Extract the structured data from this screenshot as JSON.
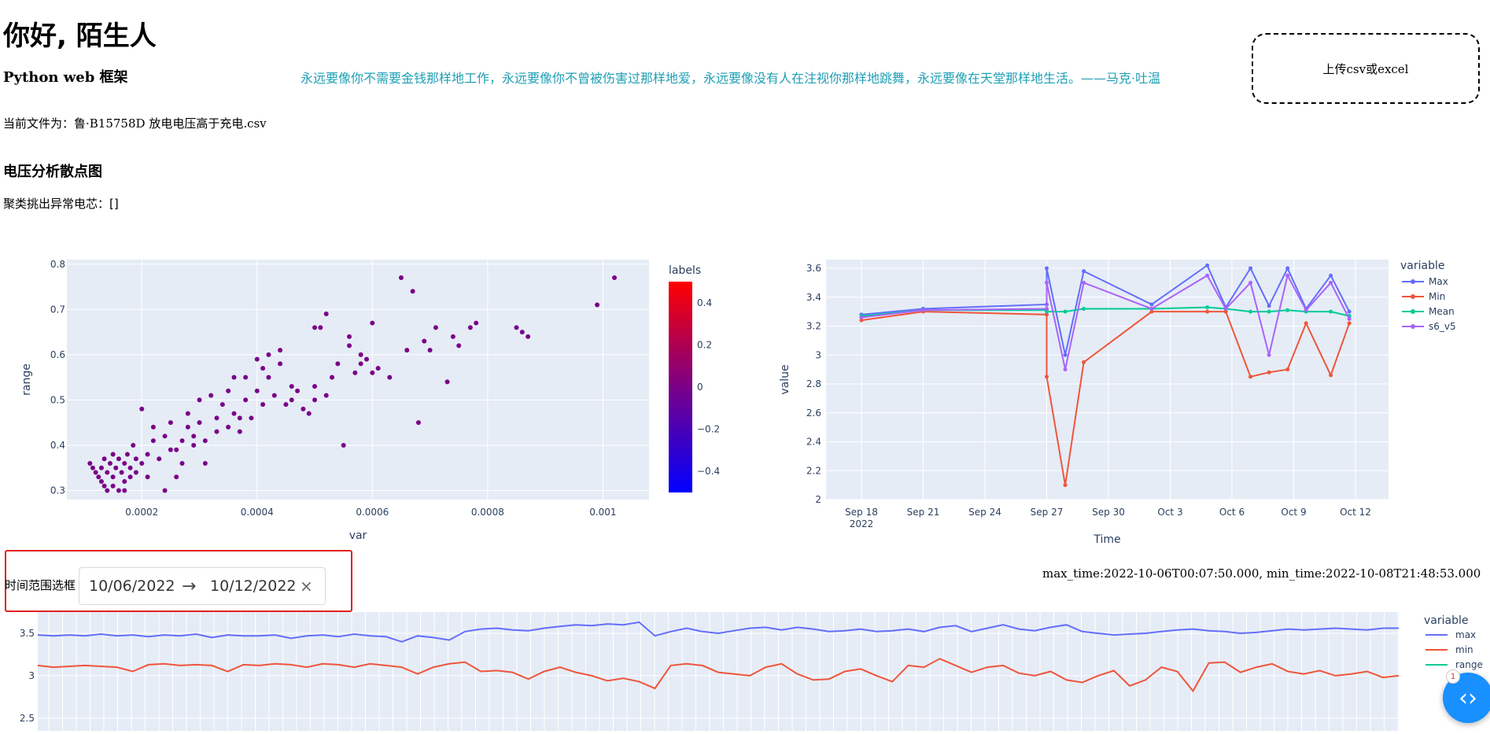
{
  "header": {
    "title": "你好, 陌生人",
    "subtitle": "Python web 框架",
    "quote": "永远要像你不需要金钱那样地工作，永远要像你不曾被伤害过那样地爱，永远要像没有人在注视你那样地跳舞，永远要像在天堂那样地生活。——马克·吐温"
  },
  "upload": {
    "label": "上传csv或excel"
  },
  "current_file": {
    "label": "当前文件为：",
    "name": "鲁·B15758D 放电电压高于充电.csv"
  },
  "section": {
    "title": "电压分析散点图"
  },
  "cluster": {
    "label": "聚类挑出异常电芯：",
    "value": "[]"
  },
  "range_selector": {
    "label": "时间范围选框",
    "start": "10/06/2022",
    "arrow": "→",
    "end": "10/12/2022",
    "clear": "×"
  },
  "maxmin_text": "max_time:2022-10-06T00:07:50.000, min_time:2022-10-08T21:48:53.000",
  "fab": {
    "icon": "code-icon",
    "badge": "1"
  },
  "chart_data": [
    {
      "type": "scatter",
      "xlabel": "var",
      "ylabel": "range",
      "xticks": [
        "0.0002",
        "0.0004",
        "0.0006",
        "0.0008",
        "0.001"
      ],
      "yticks": [
        "0.3",
        "0.4",
        "0.5",
        "0.6",
        "0.7",
        "0.8"
      ],
      "xlim": [
        7e-05,
        0.00108
      ],
      "ylim": [
        0.28,
        0.81
      ],
      "colorbar": {
        "title": "labels",
        "ticks": [
          "0.4",
          "0.2",
          "0",
          "−0.2",
          "−0.4"
        ],
        "range": [
          -0.5,
          0.5
        ]
      },
      "point_color": "#7a0087",
      "points": [
        [
          0.00011,
          0.36
        ],
        [
          0.00012,
          0.34
        ],
        [
          0.000125,
          0.33
        ],
        [
          0.00013,
          0.35
        ],
        [
          0.00013,
          0.32
        ],
        [
          0.000135,
          0.37
        ],
        [
          0.00014,
          0.3
        ],
        [
          0.00014,
          0.34
        ],
        [
          0.000145,
          0.36
        ],
        [
          0.00015,
          0.31
        ],
        [
          0.00015,
          0.33
        ],
        [
          0.000155,
          0.35
        ],
        [
          0.00016,
          0.3
        ],
        [
          0.00016,
          0.37
        ],
        [
          0.000165,
          0.34
        ],
        [
          0.00017,
          0.32
        ],
        [
          0.00017,
          0.36
        ],
        [
          0.000175,
          0.38
        ],
        [
          0.00018,
          0.33
        ],
        [
          0.00018,
          0.35
        ],
        [
          0.000185,
          0.4
        ],
        [
          0.00019,
          0.34
        ],
        [
          0.00019,
          0.37
        ],
        [
          0.0002,
          0.48
        ],
        [
          0.0002,
          0.36
        ],
        [
          0.00021,
          0.38
        ],
        [
          0.00021,
          0.33
        ],
        [
          0.00022,
          0.44
        ],
        [
          0.00023,
          0.37
        ],
        [
          0.00024,
          0.42
        ],
        [
          0.00024,
          0.3
        ],
        [
          0.00025,
          0.45
        ],
        [
          0.00025,
          0.39
        ],
        [
          0.00026,
          0.33
        ],
        [
          0.00027,
          0.41
        ],
        [
          0.00027,
          0.36
        ],
        [
          0.00028,
          0.44
        ],
        [
          0.00028,
          0.47
        ],
        [
          0.00029,
          0.4
        ],
        [
          0.00029,
          0.42
        ],
        [
          0.0003,
          0.5
        ],
        [
          0.0003,
          0.45
        ],
        [
          0.00031,
          0.41
        ],
        [
          0.00031,
          0.36
        ],
        [
          0.00032,
          0.51
        ],
        [
          0.00033,
          0.46
        ],
        [
          0.00034,
          0.49
        ],
        [
          0.00035,
          0.52
        ],
        [
          0.00035,
          0.44
        ],
        [
          0.00036,
          0.55
        ],
        [
          0.00036,
          0.47
        ],
        [
          0.00037,
          0.43
        ],
        [
          0.00038,
          0.5
        ],
        [
          0.00038,
          0.55
        ],
        [
          0.00039,
          0.46
        ],
        [
          0.0004,
          0.59
        ],
        [
          0.0004,
          0.52
        ],
        [
          0.00041,
          0.57
        ],
        [
          0.00041,
          0.49
        ],
        [
          0.00042,
          0.6
        ],
        [
          0.00042,
          0.55
        ],
        [
          0.00043,
          0.51
        ],
        [
          0.00044,
          0.61
        ],
        [
          0.00044,
          0.58
        ],
        [
          0.00045,
          0.49
        ],
        [
          0.00046,
          0.5
        ],
        [
          0.00047,
          0.52
        ],
        [
          0.00048,
          0.48
        ],
        [
          0.00049,
          0.47
        ],
        [
          0.0005,
          0.5
        ],
        [
          0.0005,
          0.53
        ],
        [
          0.00051,
          0.66
        ],
        [
          0.00052,
          0.69
        ],
        [
          0.00052,
          0.51
        ],
        [
          0.00053,
          0.55
        ],
        [
          0.00054,
          0.58
        ],
        [
          0.00055,
          0.4
        ],
        [
          0.00056,
          0.64
        ],
        [
          0.00056,
          0.62
        ],
        [
          0.00057,
          0.56
        ],
        [
          0.00058,
          0.58
        ],
        [
          0.00059,
          0.59
        ],
        [
          0.0006,
          0.56
        ],
        [
          0.0006,
          0.67
        ],
        [
          0.00061,
          0.57
        ],
        [
          0.00063,
          0.55
        ],
        [
          0.00065,
          0.77
        ],
        [
          0.00066,
          0.61
        ],
        [
          0.00067,
          0.74
        ],
        [
          0.00068,
          0.45
        ],
        [
          0.00069,
          0.63
        ],
        [
          0.0007,
          0.61
        ],
        [
          0.00071,
          0.66
        ],
        [
          0.00073,
          0.54
        ],
        [
          0.00074,
          0.64
        ],
        [
          0.00075,
          0.62
        ],
        [
          0.00077,
          0.66
        ],
        [
          0.00078,
          0.67
        ],
        [
          0.00085,
          0.66
        ],
        [
          0.00086,
          0.65
        ],
        [
          0.00087,
          0.64
        ],
        [
          0.00099,
          0.71
        ],
        [
          0.00102,
          0.77
        ],
        [
          0.000115,
          0.35
        ],
        [
          0.000135,
          0.31
        ],
        [
          0.00015,
          0.38
        ],
        [
          0.00017,
          0.3
        ],
        [
          0.00022,
          0.41
        ],
        [
          0.00026,
          0.39
        ],
        [
          0.00033,
          0.43
        ],
        [
          0.00037,
          0.46
        ],
        [
          0.00046,
          0.53
        ],
        [
          0.0005,
          0.66
        ],
        [
          0.00058,
          0.6
        ]
      ]
    },
    {
      "type": "line",
      "xlabel": "Time",
      "ylabel": "value",
      "xticks": [
        "Sep 18\n2022",
        "Sep 21",
        "Sep 24",
        "Sep 27",
        "Sep 30",
        "Oct 3",
        "Oct 6",
        "Oct 9",
        "Oct 12"
      ],
      "yticks": [
        "2",
        "2.2",
        "2.4",
        "2.6",
        "2.8",
        "3",
        "3.2",
        "3.4",
        "3.6"
      ],
      "ylim": [
        2.0,
        3.66
      ],
      "legend_title": "variable",
      "legend_position": "right",
      "series": [
        {
          "name": "Max",
          "color": "#636efa",
          "values": [
            3.28,
            3.32,
            3.35,
            3.6,
            3.0,
            3.58,
            3.35,
            3.62,
            3.33,
            3.6,
            3.34,
            3.6,
            3.32,
            3.55,
            3.3
          ]
        },
        {
          "name": "Min",
          "color": "#ef553b",
          "values": [
            3.24,
            3.3,
            3.28,
            2.85,
            2.1,
            2.95,
            3.3,
            3.3,
            3.3,
            2.85,
            2.88,
            2.9,
            3.22,
            2.86,
            3.22
          ]
        },
        {
          "name": "Mean",
          "color": "#00cc96",
          "values": [
            3.27,
            3.31,
            3.31,
            3.3,
            3.3,
            3.32,
            3.32,
            3.33,
            3.32,
            3.3,
            3.3,
            3.31,
            3.3,
            3.3,
            3.27
          ]
        },
        {
          "name": "s6_v5",
          "color": "#ab63fa",
          "values": [
            3.26,
            3.31,
            3.32,
            3.5,
            2.9,
            3.5,
            3.32,
            3.55,
            3.32,
            3.5,
            3.0,
            3.55,
            3.31,
            3.5,
            3.25
          ]
        }
      ]
    },
    {
      "type": "line",
      "yticks": [
        "2.5",
        "3",
        "3.5"
      ],
      "ylim": [
        2.35,
        3.75
      ],
      "legend_title": "variable",
      "legend_position": "right",
      "series": [
        {
          "name": "max",
          "color": "#636efa",
          "values": [
            3.48,
            3.47,
            3.48,
            3.47,
            3.49,
            3.47,
            3.48,
            3.46,
            3.48,
            3.47,
            3.49,
            3.45,
            3.48,
            3.47,
            3.47,
            3.48,
            3.44,
            3.47,
            3.48,
            3.46,
            3.49,
            3.47,
            3.46,
            3.4,
            3.47,
            3.45,
            3.42,
            3.52,
            3.55,
            3.56,
            3.54,
            3.53,
            3.56,
            3.58,
            3.6,
            3.59,
            3.61,
            3.6,
            3.63,
            3.47,
            3.52,
            3.56,
            3.52,
            3.5,
            3.53,
            3.56,
            3.57,
            3.54,
            3.57,
            3.55,
            3.52,
            3.53,
            3.55,
            3.52,
            3.53,
            3.55,
            3.52,
            3.57,
            3.59,
            3.52,
            3.56,
            3.6,
            3.55,
            3.53,
            3.57,
            3.6,
            3.52,
            3.5,
            3.48,
            3.49,
            3.5,
            3.52,
            3.54,
            3.55,
            3.53,
            3.52,
            3.5,
            3.51,
            3.53,
            3.55,
            3.54,
            3.55,
            3.56,
            3.55,
            3.54,
            3.56,
            3.56
          ]
        },
        {
          "name": "min",
          "color": "#ef553b",
          "values": [
            3.12,
            3.1,
            3.11,
            3.12,
            3.11,
            3.1,
            3.05,
            3.13,
            3.14,
            3.12,
            3.13,
            3.12,
            3.05,
            3.13,
            3.12,
            3.14,
            3.13,
            3.1,
            3.14,
            3.13,
            3.1,
            3.14,
            3.12,
            3.1,
            3.02,
            3.1,
            3.14,
            3.16,
            3.05,
            3.06,
            3.04,
            2.96,
            3.05,
            3.1,
            3.04,
            3.0,
            2.94,
            2.97,
            2.93,
            2.85,
            3.12,
            3.14,
            3.12,
            3.04,
            3.02,
            3.0,
            3.1,
            3.14,
            3.02,
            2.95,
            2.96,
            3.05,
            3.08,
            3.0,
            2.93,
            3.12,
            3.1,
            3.2,
            3.12,
            3.04,
            3.1,
            3.12,
            3.03,
            3.0,
            3.05,
            2.95,
            2.92,
            3.0,
            3.06,
            2.88,
            2.95,
            3.1,
            3.05,
            2.82,
            3.15,
            3.16,
            3.04,
            3.1,
            3.14,
            3.05,
            3.02,
            3.06,
            3.0,
            3.02,
            3.05,
            2.98,
            3.0
          ]
        },
        {
          "name": "range",
          "color": "#00cc96",
          "values": []
        }
      ]
    }
  ]
}
